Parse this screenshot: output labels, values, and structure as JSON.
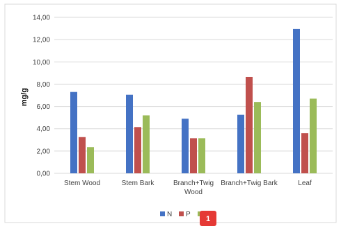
{
  "chart_data": {
    "type": "bar",
    "categories": [
      "Stem Wood",
      "Stem Bark",
      "Branch+Twig Wood",
      "Branch+Twig Bark",
      "Leaf"
    ],
    "category_lines": [
      [
        "Stem Wood"
      ],
      [
        "Stem Bark"
      ],
      [
        "Branch+Twig",
        "Wood"
      ],
      [
        "Branch+Twig Bark"
      ],
      [
        "Leaf"
      ]
    ],
    "series": [
      {
        "name": "N",
        "color": "#4472C4",
        "values": [
          7.3,
          7.05,
          4.9,
          5.25,
          12.95
        ]
      },
      {
        "name": "P",
        "color": "#C0504D",
        "values": [
          3.25,
          4.15,
          3.15,
          8.65,
          3.6
        ]
      },
      {
        "name": "K",
        "color": "#9BBB59",
        "values": [
          2.35,
          5.2,
          3.15,
          6.4,
          6.7
        ]
      }
    ],
    "ylabel": "mg/g",
    "ylim": [
      0,
      14
    ],
    "yticks": [
      "0,00",
      "2,00",
      "4,00",
      "6,00",
      "8,00",
      "10,00",
      "12,00",
      "14,00"
    ],
    "grid": true,
    "legend_position": "bottom"
  },
  "badge": {
    "label": "1",
    "color": "#E53935"
  }
}
